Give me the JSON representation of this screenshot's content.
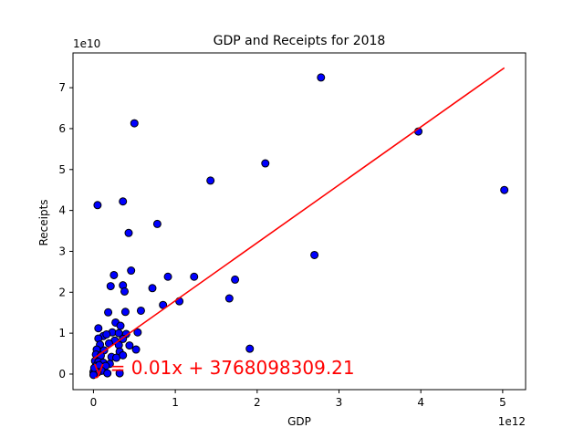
{
  "chart_data": {
    "type": "scatter",
    "title": "GDP and Receipts for 2018",
    "xlabel": "GDP",
    "ylabel": "Receipts",
    "x_offset_label": "1e12",
    "y_offset_label": "1e10",
    "xlim": [
      -250000000000.0,
      5280000000000.0
    ],
    "ylim": [
      -3800000000.0,
      78500000000.0
    ],
    "x_ticks": [
      0,
      1000000000000.0,
      2000000000000.0,
      3000000000000.0,
      4000000000000.0,
      5000000000000.0
    ],
    "x_tick_labels": [
      "0",
      "1",
      "2",
      "3",
      "4",
      "5"
    ],
    "y_ticks": [
      0,
      10000000000.0,
      20000000000.0,
      30000000000.0,
      40000000000.0,
      50000000000.0,
      60000000000.0,
      70000000000.0
    ],
    "y_tick_labels": [
      "0",
      "1",
      "2",
      "3",
      "4",
      "5",
      "6",
      "7"
    ],
    "grid": false,
    "series": [
      {
        "marker_color": "#0000ff",
        "marker_edge_color": "#000000",
        "points": [
          [
            50000000000.0,
            41300000000.0
          ],
          [
            500000000000.0,
            61300000000.0
          ],
          [
            2780000000000.0,
            72500000000.0
          ],
          [
            3970000000000.0,
            59300000000.0
          ],
          [
            5020000000000.0,
            45000000000.0
          ],
          [
            2100000000000.0,
            51500000000.0
          ],
          [
            1430000000000.0,
            47300000000.0
          ],
          [
            360000000000.0,
            42200000000.0
          ],
          [
            780000000000.0,
            36700000000.0
          ],
          [
            430000000000.0,
            34500000000.0
          ],
          [
            2700000000000.0,
            29100000000.0
          ],
          [
            460000000000.0,
            25300000000.0
          ],
          [
            250000000000.0,
            24200000000.0
          ],
          [
            910000000000.0,
            23800000000.0
          ],
          [
            1230000000000.0,
            23800000000.0
          ],
          [
            1730000000000.0,
            23100000000.0
          ],
          [
            210000000000.0,
            21500000000.0
          ],
          [
            360000000000.0,
            21700000000.0
          ],
          [
            380000000000.0,
            20200000000.0
          ],
          [
            720000000000.0,
            21000000000.0
          ],
          [
            1660000000000.0,
            18500000000.0
          ],
          [
            1050000000000.0,
            17800000000.0
          ],
          [
            850000000000.0,
            16900000000.0
          ],
          [
            180000000000.0,
            15100000000.0
          ],
          [
            390000000000.0,
            15200000000.0
          ],
          [
            580000000000.0,
            15500000000.0
          ],
          [
            270000000000.0,
            12600000000.0
          ],
          [
            60000000000.0,
            11200000000.0
          ],
          [
            330000000000.0,
            11800000000.0
          ],
          [
            120000000000.0,
            9300000000.0
          ],
          [
            230000000000.0,
            10200000000.0
          ],
          [
            310000000000.0,
            10000000000.0
          ],
          [
            400000000000.0,
            9800000000.0
          ],
          [
            540000000000.0,
            10200000000.0
          ],
          [
            60000000000.0,
            8700000000.0
          ],
          [
            160000000000.0,
            9700000000.0
          ],
          [
            260000000000.0,
            8200000000.0
          ],
          [
            360000000000.0,
            8600000000.0
          ],
          [
            80000000000.0,
            7200000000.0
          ],
          [
            190000000000.0,
            7500000000.0
          ],
          [
            310000000000.0,
            7100000000.0
          ],
          [
            440000000000.0,
            7000000000.0
          ],
          [
            40000000000.0,
            6000000000.0
          ],
          [
            130000000000.0,
            5800000000.0
          ],
          [
            320000000000.0,
            5500000000.0
          ],
          [
            520000000000.0,
            6000000000.0
          ],
          [
            1910000000000.0,
            6200000000.0
          ],
          [
            30000000000.0,
            4800000000.0
          ],
          [
            90000000000.0,
            4500000000.0
          ],
          [
            220000000000.0,
            4200000000.0
          ],
          [
            280000000000.0,
            4000000000.0
          ],
          [
            360000000000.0,
            4600000000.0
          ],
          [
            20000000000.0,
            3200000000.0
          ],
          [
            60000000000.0,
            3000000000.0
          ],
          [
            120000000000.0,
            2800000000.0
          ],
          [
            200000000000.0,
            2500000000.0
          ],
          [
            30000000000.0,
            2000000000.0
          ],
          [
            80000000000.0,
            1800000000.0
          ],
          [
            150000000000.0,
            2000000000.0
          ],
          [
            10000000000.0,
            1000000000.0
          ],
          [
            40000000000.0,
            1200000000.0
          ],
          [
            100000000000.0,
            800000000.0
          ],
          [
            0.0,
            500000000.0
          ],
          [
            20000000000.0,
            200000000.0
          ],
          [
            50000000000.0,
            400000000.0
          ],
          [
            170000000000.0,
            200000000.0
          ],
          [
            320000000000.0,
            200000000.0
          ],
          [
            0.0,
            -200000000.0
          ],
          [
            10000000000.0,
            1500000000.0
          ],
          [
            70000000000.0,
            2200000000.0
          ]
        ]
      }
    ],
    "regression": {
      "slope": 0.01416,
      "intercept": 3768098309.21,
      "x_range": [
        0,
        5020000000000.0
      ],
      "color": "#ff0000",
      "equation": "y = 0.01x + 3768098309.21",
      "equation_anchor": [
        0.0,
        0.0
      ],
      "equation_color": "#ff0000"
    }
  }
}
